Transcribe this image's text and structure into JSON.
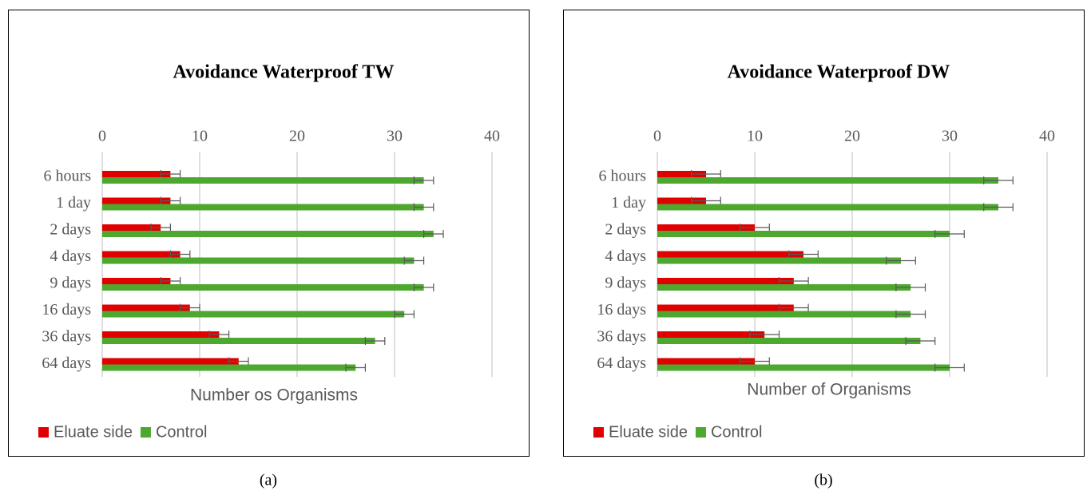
{
  "chart_data": [
    {
      "type": "bar",
      "title": "Avoidance Waterproof TW",
      "panel": "(a)",
      "orientation": "horizontal",
      "categories": [
        "6 hours",
        "1 day",
        "2 days",
        "4 days",
        "9 days",
        "16 days",
        "36 days",
        "64 days"
      ],
      "series": [
        {
          "name": "Eluate side",
          "color": "#e00000",
          "values": [
            7,
            7,
            6,
            8,
            7,
            9,
            12,
            14
          ],
          "errors": [
            1,
            1,
            1,
            1,
            1,
            1,
            1,
            1
          ]
        },
        {
          "name": "Control",
          "color": "#4ea72e",
          "values": [
            33,
            33,
            34,
            32,
            33,
            31,
            28,
            26
          ],
          "errors": [
            1,
            1,
            1,
            1,
            1,
            1,
            1,
            1
          ]
        }
      ],
      "xlabel": "Number os Organisms",
      "xlim": [
        0,
        40
      ],
      "xticks": [
        0,
        10,
        20,
        30,
        40
      ],
      "grid": true,
      "legend": "bottom-left"
    },
    {
      "type": "bar",
      "title": "Avoidance Waterproof DW",
      "panel": "(b)",
      "orientation": "horizontal",
      "categories": [
        "6 hours",
        "1 day",
        "2 days",
        "4 days",
        "9 days",
        "16 days",
        "36 days",
        "64 days"
      ],
      "series": [
        {
          "name": "Eluate side",
          "color": "#e00000",
          "values": [
            5,
            5,
            10,
            15,
            14,
            14,
            11,
            10
          ],
          "errors": [
            1.5,
            1.5,
            1.5,
            1.5,
            1.5,
            1.5,
            1.5,
            1.5
          ]
        },
        {
          "name": "Control",
          "color": "#4ea72e",
          "values": [
            35,
            35,
            30,
            25,
            26,
            26,
            27,
            30
          ],
          "errors": [
            1.5,
            1.5,
            1.5,
            1.5,
            1.5,
            1.5,
            1.5,
            1.5
          ]
        }
      ],
      "xlabel": "Number of Organisms",
      "xlim": [
        0,
        40
      ],
      "xticks": [
        0,
        10,
        20,
        30,
        40
      ],
      "grid": true,
      "legend": "bottom-left"
    }
  ]
}
